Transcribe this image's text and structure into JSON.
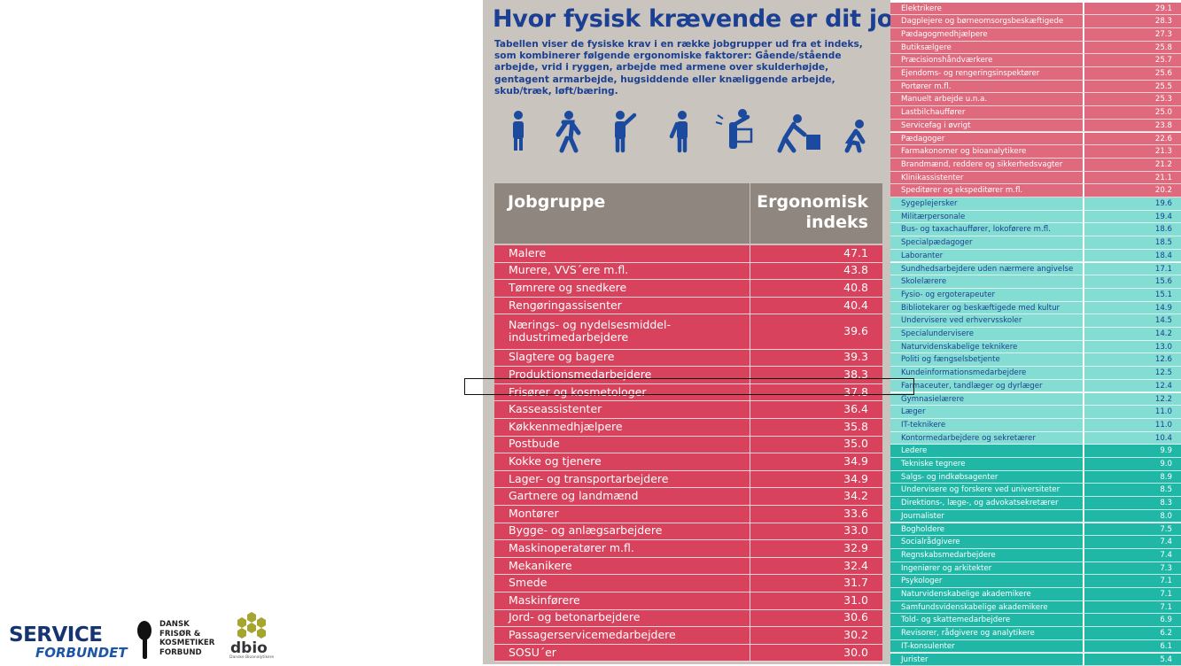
{
  "header": {
    "title": "Hvor fysisk krævende er dit job?",
    "description": "Tabellen viser de fysiske krav i en række jobgrupper ud fra et indeks, som kombinerer følgende ergonomiske faktorer: Gående/stående arbejde, vrid i ryggen, arbejde med armene over skulderhøjde, gentagent armarbejde, hugsiddende eller knæliggende arbejde, skub/træk, løft/bæring."
  },
  "left_table": {
    "columns": [
      "Jobgruppe",
      "Ergonomisk\nindeks"
    ],
    "color": "#d8425c",
    "rows": [
      [
        "Malere",
        "47.1"
      ],
      [
        "Murere, VVS´ere m.fl.",
        "43.8"
      ],
      [
        "Tømrere og snedkere",
        "40.8"
      ],
      [
        "Rengøringassisenter",
        "40.4"
      ],
      [
        "Nærings- og nydelsesmiddel-\nindustrimedarbejdere",
        "39.6"
      ],
      [
        "Slagtere og bagere",
        "39.3"
      ],
      [
        "Produktionsmedarbejdere",
        "38.3"
      ],
      [
        "Frisører og kosmetologer",
        "37.8"
      ],
      [
        "Kasseassistenter",
        "36.4"
      ],
      [
        "Køkkenmedhjælpere",
        "35.8"
      ],
      [
        "Postbude",
        "35.0"
      ],
      [
        "Kokke og tjenere",
        "34.9"
      ],
      [
        "Lager- og transportarbejdere",
        "34.9"
      ],
      [
        "Gartnere og landmænd",
        "34.2"
      ],
      [
        "Montører",
        "33.6"
      ],
      [
        "Bygge- og anlægsarbejdere",
        "33.0"
      ],
      [
        "Maskinoperatører m.fl.",
        "32.9"
      ],
      [
        "Mekanikere",
        "32.4"
      ],
      [
        "Smede",
        "31.7"
      ],
      [
        "Maskinførere",
        "31.0"
      ],
      [
        "Jord- og betonarbejdere",
        "30.6"
      ],
      [
        "Passagerservicemedarbejdere",
        "30.2"
      ],
      [
        "SOSU´er",
        "30.0"
      ]
    ]
  },
  "right_table": {
    "sections": [
      {
        "color": "#df6a7d",
        "text_color": "#ffffff",
        "rows": [
          [
            "Elektrikere",
            "29.1"
          ],
          [
            "Dagplejere og børneomsorgsbeskæftigede",
            "28.3"
          ],
          [
            "Pædagogmedhjælpere",
            "27.3"
          ],
          [
            "Butiksælgere",
            "25.8"
          ],
          [
            "Præcisionshåndværkere",
            "25.7"
          ],
          [
            "Ejendoms- og rengeringsinspektører",
            "25.6"
          ],
          [
            "Portører m.fl.",
            "25.5"
          ],
          [
            "Manuelt arbejde u.n.a.",
            "25.3"
          ],
          [
            "Lastbilchauffører",
            "25.0"
          ],
          [
            "Servicefag i øvrigt",
            "23.8"
          ],
          [
            "Pædagoger",
            "22.6"
          ],
          [
            "Farmakonomer og bioanalytikere",
            "21.3"
          ],
          [
            "Brandmænd, reddere og sikkerhedsvagter",
            "21.2"
          ],
          [
            "Klinikassistenter",
            "21.1"
          ],
          [
            "Speditører og ekspeditører m.fl.",
            "20.2"
          ]
        ]
      },
      {
        "color": "#84ddd3",
        "text_color": "#1b3f93",
        "rows": [
          [
            "Sygeplejersker",
            "19.6"
          ],
          [
            "Militærpersonale",
            "19.4"
          ],
          [
            "Bus- og taxachauffører, lokoførere m.fl.",
            "18.6"
          ],
          [
            "Specialpædagoger",
            "18.5"
          ],
          [
            "Laboranter",
            "18.4"
          ],
          [
            "Sundhedsarbejdere uden nærmere angivelse",
            "17.1"
          ],
          [
            "Skolelærere",
            "15.6"
          ],
          [
            "Fysio- og ergoterapeuter",
            "15.1"
          ],
          [
            "Bibliotekarer og beskæftigede med kultur",
            "14.9"
          ],
          [
            "Undervisere ved erhvervsskoler",
            "14.5"
          ],
          [
            "Specialundervisere",
            "14.2"
          ],
          [
            "Naturvidenskabelige teknikere",
            "13.0"
          ],
          [
            "Politi og fængselsbetjente",
            "12.6"
          ],
          [
            "Kundeinformationsmedarbejdere",
            "12.5"
          ],
          [
            "Farmaceuter, tandlæger og dyrlæger",
            "12.4"
          ],
          [
            "Gymnasielærere",
            "12.2"
          ],
          [
            "Læger",
            "11.0"
          ],
          [
            "IT-teknikere",
            "11.0"
          ],
          [
            "Kontormedarbejdere og sekretærer",
            "10.4"
          ]
        ]
      },
      {
        "color": "#21b7a7",
        "text_color": "#ffffff",
        "rows": [
          [
            "Ledere",
            "9.9"
          ],
          [
            "Tekniske tegnere",
            "9.0"
          ],
          [
            "Salgs- og indkøbsagenter",
            "8.9"
          ],
          [
            "Undervisere og forskere ved universiteter",
            "8.5"
          ],
          [
            "Direktions-, læge-, og advokatsekretærer",
            "8.3"
          ],
          [
            "Journalister",
            "8.0"
          ],
          [
            "Bogholdere",
            "7.5"
          ],
          [
            "Socialrådgivere",
            "7.4"
          ],
          [
            "Regnskabsmedarbejdere",
            "7.4"
          ],
          [
            "Ingeniører og arkitekter",
            "7.3"
          ],
          [
            "Psykologer",
            "7.1"
          ],
          [
            "Naturvidenskabelige akademikere",
            "7.1"
          ],
          [
            "Samfundsvidenskabelige akademikere",
            "7.1"
          ],
          [
            "Told- og skattemedarbejdere",
            "6.9"
          ],
          [
            "Revisorer, rådgivere og analytikere",
            "6.2"
          ],
          [
            "IT-konsulenter",
            "6.1"
          ],
          [
            "Jurister",
            "5.4"
          ]
        ]
      }
    ]
  },
  "logos": {
    "service": "SERVICE",
    "forbundet": "FORBUNDET",
    "dfk": "DANSK\nFRISØR &\nKOSMETIKER\nFORBUND",
    "dbio": "dbio",
    "dbio_sub": "Danske Bioanalytikere"
  }
}
